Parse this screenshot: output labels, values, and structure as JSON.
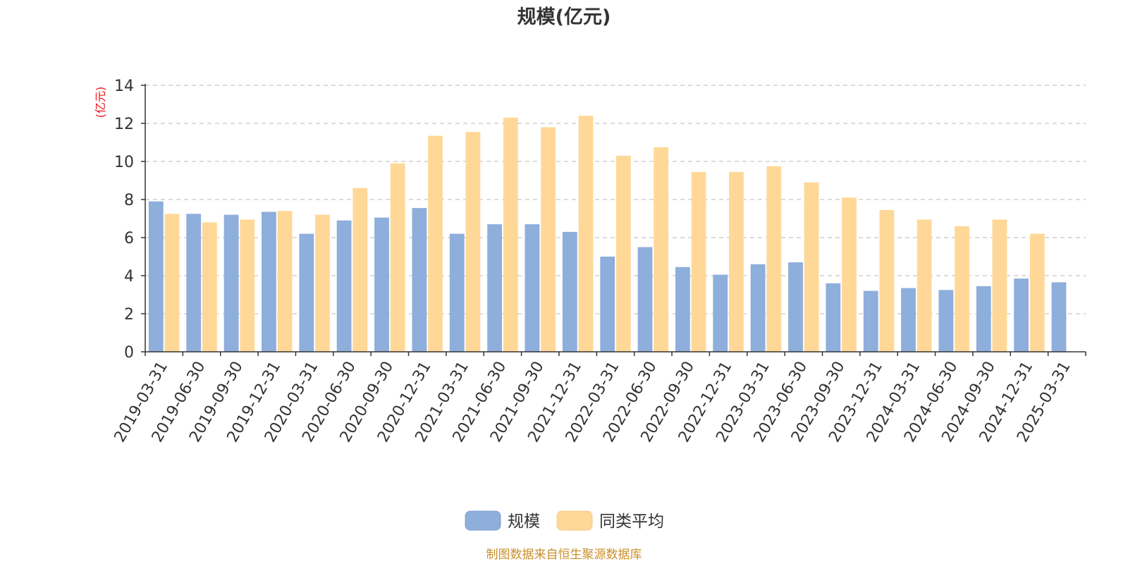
{
  "chart_data": {
    "type": "bar",
    "title": "规模(亿元)",
    "ylabel": "(亿元)",
    "ylim": [
      0,
      14
    ],
    "yticks": [
      0,
      2,
      4,
      6,
      8,
      10,
      12,
      14
    ],
    "grid": true,
    "legend_position": "bottom",
    "categories": [
      "2019-03-31",
      "2019-06-30",
      "2019-09-30",
      "2019-12-31",
      "2020-03-31",
      "2020-06-30",
      "2020-09-30",
      "2020-12-31",
      "2021-03-31",
      "2021-06-30",
      "2021-09-30",
      "2021-12-31",
      "2022-03-31",
      "2022-06-30",
      "2022-09-30",
      "2022-12-31",
      "2023-03-31",
      "2023-06-30",
      "2023-09-30",
      "2023-12-31",
      "2024-03-31",
      "2024-06-30",
      "2024-09-30",
      "2024-12-31",
      "2025-03-31"
    ],
    "series": [
      {
        "name": "规模",
        "color": "#8eaedb",
        "values": [
          7.9,
          7.25,
          7.2,
          7.35,
          6.2,
          6.9,
          7.05,
          7.55,
          6.2,
          6.7,
          6.7,
          6.3,
          5.0,
          5.5,
          4.45,
          4.05,
          4.6,
          4.7,
          3.6,
          3.2,
          3.35,
          3.25,
          3.45,
          3.85,
          3.65
        ]
      },
      {
        "name": "同类平均",
        "color": "#ffd898",
        "values": [
          7.25,
          6.8,
          6.95,
          7.4,
          7.2,
          8.6,
          9.9,
          11.35,
          11.55,
          12.3,
          11.8,
          12.4,
          10.3,
          10.75,
          9.45,
          9.45,
          9.75,
          8.9,
          8.1,
          7.45,
          6.95,
          6.6,
          6.95,
          6.2,
          null
        ]
      }
    ],
    "source": "制图数据来自恒生聚源数据库"
  }
}
